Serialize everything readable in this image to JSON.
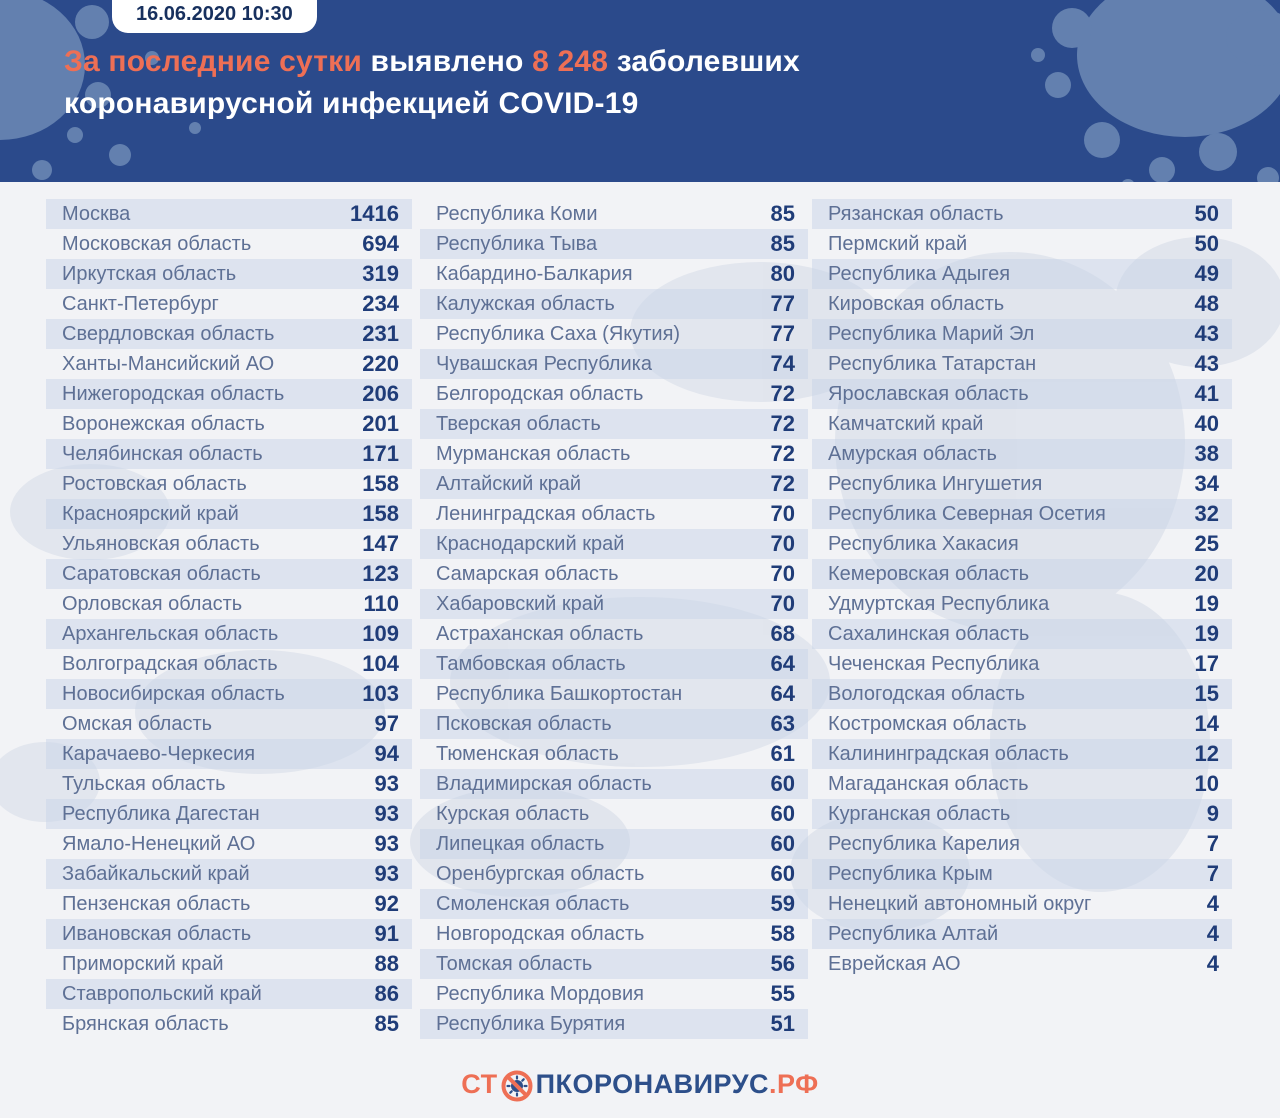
{
  "header": {
    "date_badge": "16.06.2020 10:30",
    "title_highlight": "За последние сутки",
    "title_text_1": " выявлено ",
    "title_count": "8 248",
    "title_text_2": " заболевших",
    "title_line2": "коронавирусной инфекцией COVID-19"
  },
  "chart_data": {
    "type": "table",
    "title": "За последние сутки выявлено 8 248 заболевших коронавирусной инфекцией COVID-19",
    "timestamp": "16.06.2020 10:30",
    "total_new_cases": 8248,
    "columns": [
      {
        "rows": [
          {
            "region": "Москва",
            "value": "1416"
          },
          {
            "region": "Московская область",
            "value": "694"
          },
          {
            "region": "Иркутская область",
            "value": "319"
          },
          {
            "region": "Санкт-Петербург",
            "value": "234"
          },
          {
            "region": "Свердловская область",
            "value": "231"
          },
          {
            "region": "Ханты-Мансийский АО",
            "value": "220"
          },
          {
            "region": "Нижегородская область",
            "value": "206"
          },
          {
            "region": "Воронежская область",
            "value": "201"
          },
          {
            "region": "Челябинская область",
            "value": "171"
          },
          {
            "region": "Ростовская область",
            "value": "158"
          },
          {
            "region": "Красноярский край",
            "value": "158"
          },
          {
            "region": "Ульяновская область",
            "value": "147"
          },
          {
            "region": "Саратовская область",
            "value": "123"
          },
          {
            "region": "Орловская область",
            "value": "110"
          },
          {
            "region": "Архангельская область",
            "value": "109"
          },
          {
            "region": "Волгоградская область",
            "value": "104"
          },
          {
            "region": "Новосибирская область",
            "value": "103"
          },
          {
            "region": "Омская область",
            "value": "97"
          },
          {
            "region": "Карачаево-Черкесия",
            "value": "94"
          },
          {
            "region": "Тульская область",
            "value": "93"
          },
          {
            "region": "Республика Дагестан",
            "value": "93"
          },
          {
            "region": "Ямало-Ненецкий АО",
            "value": "93"
          },
          {
            "region": "Забайкальский край",
            "value": "93"
          },
          {
            "region": "Пензенская область",
            "value": "92"
          },
          {
            "region": "Ивановская область",
            "value": "91"
          },
          {
            "region": "Приморский край",
            "value": "88"
          },
          {
            "region": "Ставропольский край",
            "value": "86"
          },
          {
            "region": "Брянская область",
            "value": "85"
          }
        ]
      },
      {
        "rows": [
          {
            "region": "Республика Коми",
            "value": "85"
          },
          {
            "region": "Республика Тыва",
            "value": "85"
          },
          {
            "region": "Кабардино-Балкария",
            "value": "80"
          },
          {
            "region": "Калужская область",
            "value": "77"
          },
          {
            "region": "Республика Саха (Якутия)",
            "value": "77"
          },
          {
            "region": "Чувашская Республика",
            "value": "74"
          },
          {
            "region": "Белгородская область",
            "value": "72"
          },
          {
            "region": "Тверская область",
            "value": "72"
          },
          {
            "region": "Мурманская область",
            "value": "72"
          },
          {
            "region": "Алтайский край",
            "value": "72"
          },
          {
            "region": "Ленинградская область",
            "value": "70"
          },
          {
            "region": "Краснодарский край",
            "value": "70"
          },
          {
            "region": "Самарская область",
            "value": "70"
          },
          {
            "region": "Хабаровский край",
            "value": "70"
          },
          {
            "region": "Астраханская область",
            "value": "68"
          },
          {
            "region": "Тамбовская область",
            "value": "64"
          },
          {
            "region": "Республика Башкортостан",
            "value": "64"
          },
          {
            "region": "Псковская область",
            "value": "63"
          },
          {
            "region": "Тюменская область",
            "value": "61"
          },
          {
            "region": "Владимирская область",
            "value": "60"
          },
          {
            "region": "Курская область",
            "value": "60"
          },
          {
            "region": "Липецкая область",
            "value": "60"
          },
          {
            "region": "Оренбургская область",
            "value": "60"
          },
          {
            "region": "Смоленская область",
            "value": "59"
          },
          {
            "region": "Новгородская область",
            "value": "58"
          },
          {
            "region": "Томская область",
            "value": "56"
          },
          {
            "region": "Республика Мордовия",
            "value": "55"
          },
          {
            "region": "Республика Бурятия",
            "value": "51"
          }
        ]
      },
      {
        "rows": [
          {
            "region": "Рязанская область",
            "value": "50"
          },
          {
            "region": "Пермский край",
            "value": "50"
          },
          {
            "region": "Республика Адыгея",
            "value": "49"
          },
          {
            "region": "Кировская область",
            "value": "48"
          },
          {
            "region": "Республика Марий Эл",
            "value": "43"
          },
          {
            "region": "Республика Татарстан",
            "value": "43"
          },
          {
            "region": "Ярославская область",
            "value": "41"
          },
          {
            "region": "Камчатский край",
            "value": "40"
          },
          {
            "region": "Амурская область",
            "value": "38"
          },
          {
            "region": "Республика Ингушетия",
            "value": "34"
          },
          {
            "region": "Республика Северная Осетия",
            "value": "32"
          },
          {
            "region": "Республика Хакасия",
            "value": "25"
          },
          {
            "region": "Кемеровская область",
            "value": "20"
          },
          {
            "region": "Удмуртская Республика",
            "value": "19"
          },
          {
            "region": "Сахалинская область",
            "value": "19"
          },
          {
            "region": "Чеченская Республика",
            "value": "17"
          },
          {
            "region": "Вологодская область",
            "value": "15"
          },
          {
            "region": "Костромская область",
            "value": "14"
          },
          {
            "region": "Калининградская область",
            "value": "12"
          },
          {
            "region": "Магаданская область",
            "value": "10"
          },
          {
            "region": "Курганская область",
            "value": "9"
          },
          {
            "region": "Республика Карелия",
            "value": "7"
          },
          {
            "region": "Республика Крым",
            "value": "7"
          },
          {
            "region": "Ненецкий автономный округ",
            "value": "4"
          },
          {
            "region": "Республика Алтай",
            "value": "4"
          },
          {
            "region": "Еврейская АО",
            "value": "4"
          }
        ]
      }
    ]
  },
  "footer": {
    "logo_st": "СТ",
    "logo_rest": "ПКОРОНАВИРУС",
    "logo_domain": ".РФ"
  },
  "colors": {
    "header_blue": "#2B4A8B",
    "splatter_blue": "#6380AF",
    "accent_orange": "#EE6F55",
    "page_background": "#F2F3F6",
    "row_stripe": "#E1E7F0",
    "region_text": "#5E7095",
    "value_navy": "#1F3C78",
    "logo_navy": "#2D4F8A"
  }
}
